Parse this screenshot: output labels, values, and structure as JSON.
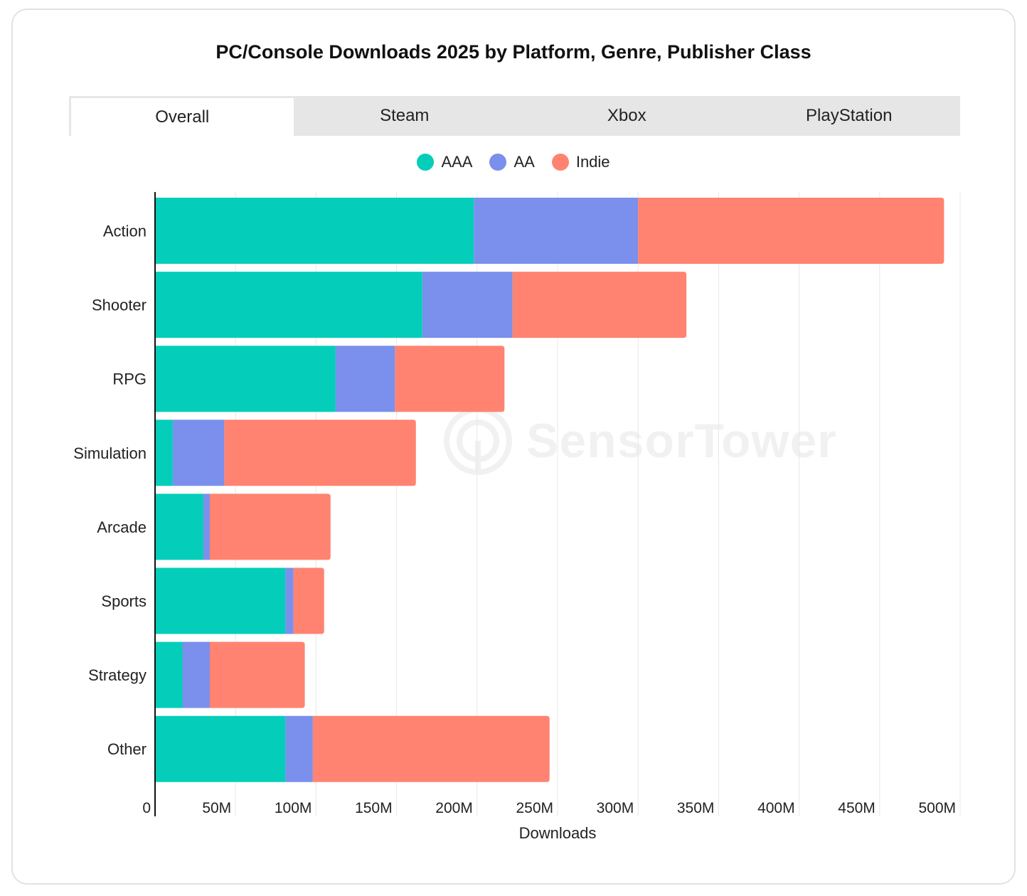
{
  "card": {
    "title": "PC/Console Downloads 2025 by Platform, Genre, Publisher Class",
    "tabs": [
      {
        "label": "Overall",
        "active": true
      },
      {
        "label": "Steam",
        "active": false
      },
      {
        "label": "Xbox",
        "active": false
      },
      {
        "label": "PlayStation",
        "active": false
      }
    ],
    "watermark": "SensorTower"
  },
  "chart_data": {
    "type": "bar",
    "orientation": "horizontal",
    "stacked": true,
    "title": "PC/Console Downloads 2025 by Platform, Genre, Publisher Class",
    "categories": [
      "Action",
      "Shooter",
      "RPG",
      "Simulation",
      "Arcade",
      "Sports",
      "Strategy",
      "Other"
    ],
    "series": [
      {
        "name": "AAA",
        "color": "#04CEB9",
        "values": [
          198,
          166,
          112,
          11,
          30,
          81,
          17,
          81
        ]
      },
      {
        "name": "AA",
        "color": "#7B8FEC",
        "values": [
          102,
          56,
          37,
          32,
          4,
          5,
          17,
          17
        ]
      },
      {
        "name": "Indie",
        "color": "#FF8370",
        "values": [
          190,
          108,
          68,
          119,
          75,
          19,
          59,
          147
        ]
      }
    ],
    "xlabel": "Downloads",
    "ylabel": "",
    "xlim": [
      0,
      500
    ],
    "xticks": [
      "0",
      "50M",
      "100M",
      "150M",
      "200M",
      "250M",
      "300M",
      "350M",
      "400M",
      "450M",
      "500M"
    ],
    "grid": true,
    "legend": "top-center"
  }
}
